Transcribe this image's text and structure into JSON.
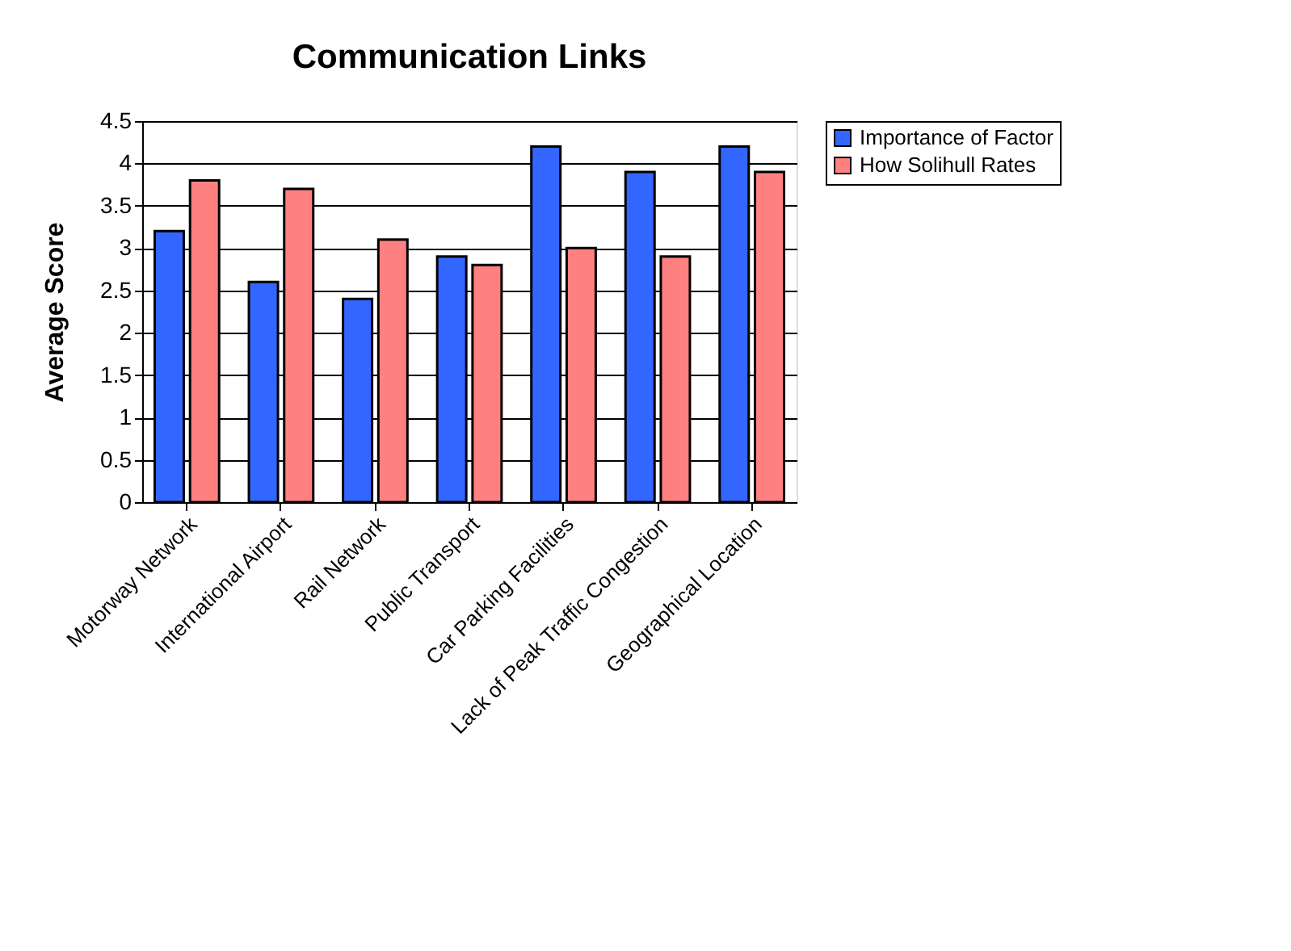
{
  "chart_data": {
    "type": "bar",
    "title": "Communication Links",
    "ylabel": "Average Score",
    "categories": [
      "Motorway Network",
      "International Airport",
      "Rail Network",
      "Public Transport",
      "Car Parking Facilities",
      "Lack of Peak Traffic Congestion",
      "Geographical Location"
    ],
    "series": [
      {
        "name": "Importance of Factor",
        "color": "#3366ff",
        "values": [
          3.2,
          2.6,
          2.4,
          2.9,
          4.2,
          3.9,
          4.2
        ]
      },
      {
        "name": "How Solihull Rates",
        "color": "#ff8080",
        "values": [
          3.8,
          3.7,
          3.1,
          2.8,
          3.0,
          2.9,
          3.9
        ]
      }
    ],
    "ylim": [
      0,
      4.5
    ],
    "yticks": [
      0,
      0.5,
      1,
      1.5,
      2,
      2.5,
      3,
      3.5,
      4,
      4.5
    ],
    "grid": "y",
    "legend": "right"
  }
}
